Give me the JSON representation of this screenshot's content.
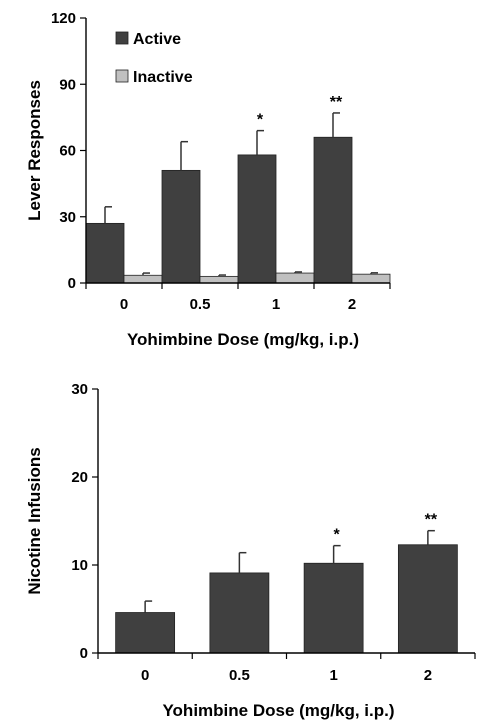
{
  "chart_data": [
    {
      "type": "bar",
      "categories": [
        "0",
        "0.5",
        "1",
        "2"
      ],
      "xlabel": "Yohimbine Dose (mg/kg, i.p.)",
      "ylabel": "Lever Responses",
      "ylim": [
        0,
        120
      ],
      "yticks": [
        "0",
        "30",
        "60",
        "90",
        "120"
      ],
      "grid": false,
      "legend": "top-left",
      "series": [
        {
          "name": "Active",
          "color": "#404040",
          "values": [
            27,
            51,
            58,
            66
          ],
          "errors": [
            7.5,
            13,
            11,
            11
          ]
        },
        {
          "name": "Inactive",
          "color": "#c0c0c0",
          "values": [
            3.5,
            3,
            4.5,
            4
          ],
          "errors": [
            1,
            0.6,
            0.5,
            0.6
          ]
        }
      ],
      "annotations": [
        "",
        "",
        "*",
        "**"
      ]
    },
    {
      "type": "bar",
      "categories": [
        "0",
        "0.5",
        "1",
        "2"
      ],
      "xlabel": "Yohimbine Dose (mg/kg, i.p.)",
      "ylabel": "Nicotine Infusions",
      "ylim": [
        0,
        30
      ],
      "yticks": [
        "0",
        "10",
        "20",
        "30"
      ],
      "grid": false,
      "series": [
        {
          "color": "#404040",
          "values": [
            4.6,
            9.1,
            10.2,
            12.3
          ],
          "errors": [
            1.3,
            2.3,
            2.0,
            1.6
          ]
        }
      ],
      "annotations": [
        "",
        "",
        "*",
        "**"
      ]
    }
  ]
}
